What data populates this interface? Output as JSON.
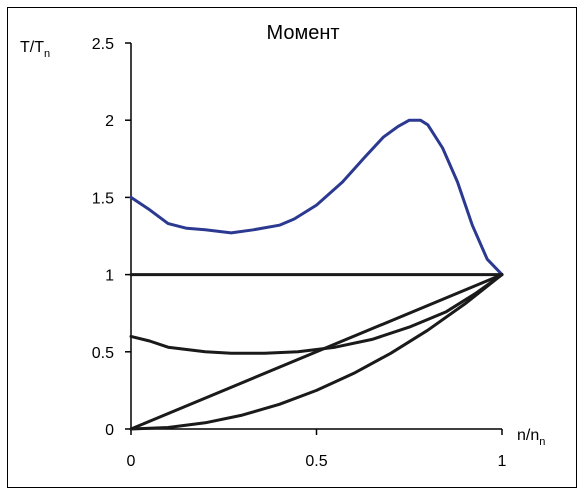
{
  "chart_data": {
    "type": "line",
    "title": "Момент",
    "ylabel": {
      "main": "T/T",
      "sub": "n"
    },
    "xlabel": {
      "main": "n/n",
      "sub": "n"
    },
    "xlim": [
      0,
      1
    ],
    "ylim": [
      0,
      2.5
    ],
    "xticks": [
      "0",
      "0.5",
      "1"
    ],
    "yticks": [
      "0",
      "0.5",
      "1",
      "1.5",
      "2",
      "2.5"
    ],
    "grid": false,
    "series": [
      {
        "color": "#2b3990",
        "points": [
          [
            0,
            1.5
          ],
          [
            0.05,
            1.42
          ],
          [
            0.1,
            1.33
          ],
          [
            0.15,
            1.3
          ],
          [
            0.2,
            1.29
          ],
          [
            0.27,
            1.27
          ],
          [
            0.33,
            1.29
          ],
          [
            0.4,
            1.32
          ],
          [
            0.44,
            1.36
          ],
          [
            0.5,
            1.45
          ],
          [
            0.57,
            1.6
          ],
          [
            0.63,
            1.76
          ],
          [
            0.68,
            1.89
          ],
          [
            0.72,
            1.96
          ],
          [
            0.75,
            2.0
          ],
          [
            0.78,
            2.0
          ],
          [
            0.8,
            1.97
          ],
          [
            0.84,
            1.82
          ],
          [
            0.88,
            1.6
          ],
          [
            0.92,
            1.32
          ],
          [
            0.96,
            1.1
          ],
          [
            1.0,
            1.0
          ]
        ]
      },
      {
        "color": "#1a1a1a",
        "points": [
          [
            0,
            1.0
          ],
          [
            1.0,
            1.0
          ]
        ]
      },
      {
        "color": "#1a1a1a",
        "points": [
          [
            0,
            0.6
          ],
          [
            0.05,
            0.57
          ],
          [
            0.1,
            0.53
          ],
          [
            0.2,
            0.5
          ],
          [
            0.27,
            0.49
          ],
          [
            0.36,
            0.49
          ],
          [
            0.45,
            0.5
          ],
          [
            0.55,
            0.53
          ],
          [
            0.65,
            0.58
          ],
          [
            0.75,
            0.66
          ],
          [
            0.85,
            0.76
          ],
          [
            0.93,
            0.88
          ],
          [
            1.0,
            1.0
          ]
        ]
      },
      {
        "color": "#1a1a1a",
        "points": [
          [
            0,
            0
          ],
          [
            1.0,
            1.0
          ]
        ]
      },
      {
        "color": "#1a1a1a",
        "points": [
          [
            0,
            0
          ],
          [
            0.1,
            0.01
          ],
          [
            0.2,
            0.04
          ],
          [
            0.3,
            0.09
          ],
          [
            0.4,
            0.16
          ],
          [
            0.5,
            0.25
          ],
          [
            0.6,
            0.36
          ],
          [
            0.7,
            0.49
          ],
          [
            0.8,
            0.64
          ],
          [
            0.9,
            0.81
          ],
          [
            1.0,
            1.0
          ]
        ]
      }
    ]
  }
}
